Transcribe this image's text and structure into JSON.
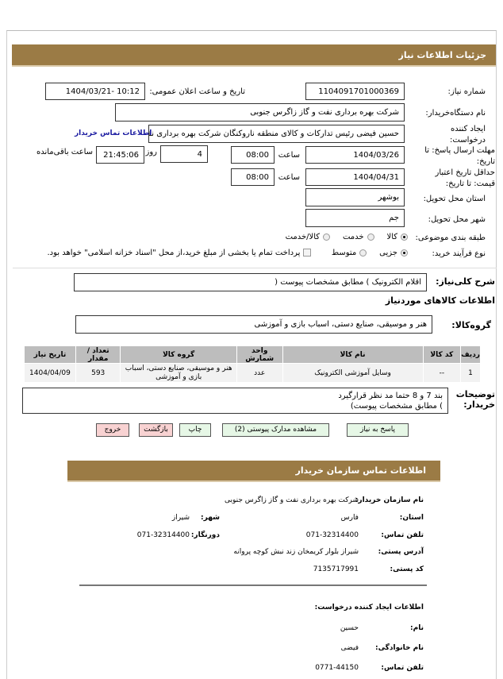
{
  "header": {
    "title": "جزئیات اطلاعات نیاز"
  },
  "form": {
    "need_number_label": "شماره نیاز:",
    "need_number": "1104091701000369",
    "announce_label": "تاریخ و ساعت اعلان عمومی:",
    "announce_value": "1404/03/21- 10:12",
    "buyer_org_label": "نام دستگاه‌خریدار:",
    "buyer_org": "شرکت بهره برداری نفت و گاز زاگرس جنوبی",
    "creator_label": "ایجاد کننده درخواست:",
    "creator": "حسین فیضی رئیس تدارکات و کالای منطقه ناروکنگان شرکت بهره برداری نفت و گاز زاگرس جنوبی",
    "contact_link": "اطلاعات تماس خریدار",
    "deadline_label": "مهلت ارسال پاسخ: تا تاریخ:",
    "deadline_date": "1404/03/26",
    "time_label": "ساعت",
    "deadline_time": "08:00",
    "days_value": "4",
    "days_label": "روز",
    "remaining_time": "21:45:06",
    "remaining_label": "ساعت باقی‌مانده",
    "validity_label": "حداقل تاریخ اعتبار قیمت: تا تاریخ:",
    "validity_date": "1404/04/31",
    "validity_time": "08:00",
    "province_label": "استان محل تحویل:",
    "province": "بوشهر",
    "city_label": "شهر محل تحویل:",
    "city": "جم",
    "category_label": "طبقه بندی موضوعی:",
    "category_options": [
      "کالا",
      "خدمت",
      "کالا/خدمت"
    ],
    "category_selected": "کالا",
    "process_label": "نوع فرآیند خرید:",
    "process_options": [
      "جزیی",
      "متوسط"
    ],
    "process_selected": "جزیی",
    "payment_note": "پرداخت تمام یا بخشی از مبلغ خرید،از محل \"اسناد خزانه اسلامی\" خواهد بود."
  },
  "summary": {
    "label": "شرح کلی‌نیاز:",
    "value": "اقلام الکترونیک ) مطابق مشخصات پیوست ("
  },
  "goods": {
    "title": "اطلاعات کالاهای موردنیاز",
    "group_label": "گروه‌کالا:",
    "group_value": "هنر و موسیقی، صنایع دستی، اسباب بازی و آموزشی",
    "columns": [
      "ردیف",
      "کد کالا",
      "نام کالا",
      "واحد شمارش",
      "گروه کالا",
      "تعداد / مقدار",
      "تاریخ نیاز"
    ],
    "rows": [
      [
        "1",
        "--",
        "وسایل آموزشی الکترونیک",
        "عدد",
        "هنر و موسیقی، صنایع دستی، اسباب بازی و آموزشی",
        "593",
        "1404/04/09"
      ]
    ]
  },
  "notes": {
    "label": "توضیحات خریدار:",
    "line1": "بند 7 و 8 حتما مد نظر قرارگیرد",
    "line2": ") مطابق مشخصات پیوست)"
  },
  "buttons": {
    "reply": "پاسخ به نیاز",
    "attachments": "مشاهده مدارک پیوستی (2)",
    "print": "چاپ",
    "back": "بازگشت",
    "exit": "خروج"
  },
  "contact": {
    "title": "اطلاعات تماس سازمان خریدار",
    "org_label": "نام سازمان خریدار:",
    "org": "شرکت بهره برداری نفت و گاز زاگرس جنوبی",
    "province_label": "استان:",
    "province": "فارس",
    "city_label": "شهر:",
    "city": "شیراز",
    "phone_label": "تلفن تماس:",
    "phone": "071-32314400",
    "fax_label": "دورنگار:",
    "fax": "071-32314400",
    "address_label": "آدرس پستی:",
    "address": "شیراز بلوار کریمخان زند نبش کوچه پروانه",
    "postal_label": "کد پستی:",
    "postal": "7135717991",
    "creator_title": "اطلاعات ایجاد کننده درخواست:",
    "name_label": "نام:",
    "name": "حسین",
    "family_label": "نام خانوادگی:",
    "family": "فیضی",
    "creator_phone_label": "تلفن تماس:",
    "creator_phone": "0771-44150"
  },
  "colors": {
    "header_bar": "#9b7b45",
    "button_green": "#e6f7e6",
    "button_red": "#f8d2d2"
  }
}
